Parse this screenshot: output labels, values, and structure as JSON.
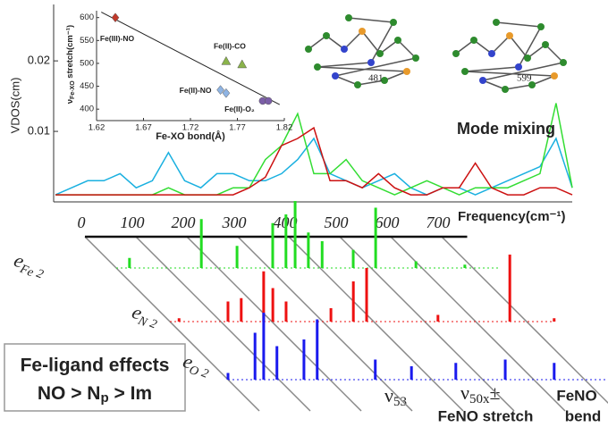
{
  "chart_data": [
    {
      "type": "line",
      "y_label": "VDOS(cm)",
      "ylim": [
        0,
        0.028
      ],
      "yticks": [
        0.01,
        0.02
      ],
      "xlim": [
        0,
        800
      ],
      "x": [
        0,
        25,
        50,
        75,
        100,
        125,
        150,
        175,
        200,
        225,
        250,
        275,
        300,
        325,
        350,
        375,
        400,
        425,
        450,
        475,
        500,
        525,
        550,
        575,
        600,
        625,
        650,
        675,
        700,
        725,
        750,
        775,
        800
      ],
      "series": [
        {
          "color": "#1ab0e0",
          "values": [
            0.001,
            0.002,
            0.003,
            0.003,
            0.004,
            0.002,
            0.003,
            0.007,
            0.003,
            0.002,
            0.004,
            0.004,
            0.003,
            0.003,
            0.004,
            0.006,
            0.009,
            0.004,
            0.003,
            0.002,
            0.003,
            0.004,
            0.002,
            0.001,
            0.002,
            0.002,
            0.001,
            0.002,
            0.003,
            0.004,
            0.005,
            0.009,
            0.002
          ]
        },
        {
          "color": "#33dd33",
          "values": [
            0.001,
            0.001,
            0.001,
            0.001,
            0.001,
            0.001,
            0.001,
            0.002,
            0.001,
            0.001,
            0.001,
            0.002,
            0.002,
            0.006,
            0.008,
            0.0125,
            0.004,
            0.004,
            0.006,
            0.003,
            0.002,
            0.001,
            0.002,
            0.003,
            0.002,
            0.001,
            0.002,
            0.002,
            0.002,
            0.003,
            0.004,
            0.014,
            0.002
          ]
        },
        {
          "color": "#cc1111",
          "values": [
            0.001,
            0.001,
            0.001,
            0.001,
            0.001,
            0.001,
            0.001,
            0.001,
            0.001,
            0.001,
            0.001,
            0.001,
            0.002,
            0.0035,
            0.008,
            0.009,
            0.0105,
            0.003,
            0.003,
            0.002,
            0.004,
            0.002,
            0.001,
            0.001,
            0.002,
            0.002,
            0.0055,
            0.002,
            0.001,
            0.001,
            0.002,
            0.002,
            0.001
          ]
        }
      ],
      "annotations": [
        "Mode mixing",
        "481",
        "599"
      ]
    },
    {
      "type": "scatter",
      "x_label": "Fe-XO bond(Å)",
      "y_label": {
        "symbol": "ν",
        "subscript": "Fe-XO",
        "text": " stretch(cm⁻¹)"
      },
      "xlim": [
        1.62,
        1.82
      ],
      "xticks": [
        1.62,
        1.67,
        1.72,
        1.77,
        1.82
      ],
      "ylim": [
        375,
        615
      ],
      "yticks": [
        400,
        450,
        500,
        550,
        600
      ],
      "series": [
        {
          "name": "Fe(III)-NO",
          "color": "#c0392b",
          "marker": "diamond",
          "x": [
            1.64
          ],
          "y": [
            600
          ]
        },
        {
          "name": "Fe(II)-CO",
          "color": "#8ab34a",
          "marker": "triangle",
          "x": [
            1.758,
            1.775
          ],
          "y": [
            505,
            498
          ]
        },
        {
          "name": "Fe(II)-NO",
          "color": "#8fb4e3",
          "marker": "diamond",
          "x": [
            1.752,
            1.758
          ],
          "y": [
            442,
            435
          ]
        },
        {
          "name": "Fe(II)-O₂",
          "color": "#7b5ea7",
          "marker": "circle",
          "x": [
            1.797,
            1.803
          ],
          "y": [
            418,
            418
          ]
        }
      ],
      "trend_line": {
        "x": [
          1.625,
          1.815
        ],
        "y": [
          612,
          410
        ]
      }
    },
    {
      "type": "stick",
      "x_label": "Frequency(cm⁻¹)",
      "xlim": [
        0,
        750
      ],
      "xticks": [
        0,
        100,
        200,
        300,
        400,
        500,
        600,
        700
      ],
      "series": [
        {
          "name": "e",
          "subscript": "Fe",
          "superscript": "2",
          "color": "#22dd22",
          "x": [
            26,
            167,
            237,
            307,
            333,
            351,
            377,
            404,
            465,
            509,
            588,
            684
          ],
          "values": [
            0.15,
            0.73,
            0.33,
            0.67,
            0.8,
            1,
            0.53,
            0.4,
            0.27,
            0.9,
            0.1,
            0.05
          ]
        },
        {
          "name": "e",
          "subscript": "N",
          "superscript": "2",
          "color": "#ee1111",
          "x": [
            18,
            114,
            140,
            184,
            202,
            228,
            316,
            360,
            386,
            526,
            667,
            754
          ],
          "values": [
            0.05,
            0.3,
            0.35,
            0.75,
            0.5,
            0.3,
            0.2,
            0.6,
            0.8,
            0.1,
            1,
            0.05
          ]
        },
        {
          "name": "e",
          "subscript": "O",
          "superscript": "2",
          "color": "#1a1aee",
          "x": [
            0,
            53,
            70,
            96,
            149,
            175,
            289,
            360,
            447,
            544,
            640
          ],
          "values": [
            0.1,
            0.7,
            1,
            0.5,
            0.6,
            0.9,
            0.3,
            0.2,
            0.25,
            0.3,
            0.25
          ]
        }
      ],
      "annotations": {
        "nu53": {
          "symbol": "ν",
          "subscript": "53"
        },
        "nu50": {
          "symbol": "ν",
          "subscript": "50x",
          "suffix": "±"
        },
        "stretch": "FeNO stretch",
        "bend": [
          "FeNO",
          "bend"
        ],
        "box": {
          "title": "Fe-ligand effects",
          "parts": [
            "NO > N",
            "p",
            " > Im"
          ]
        }
      }
    }
  ]
}
